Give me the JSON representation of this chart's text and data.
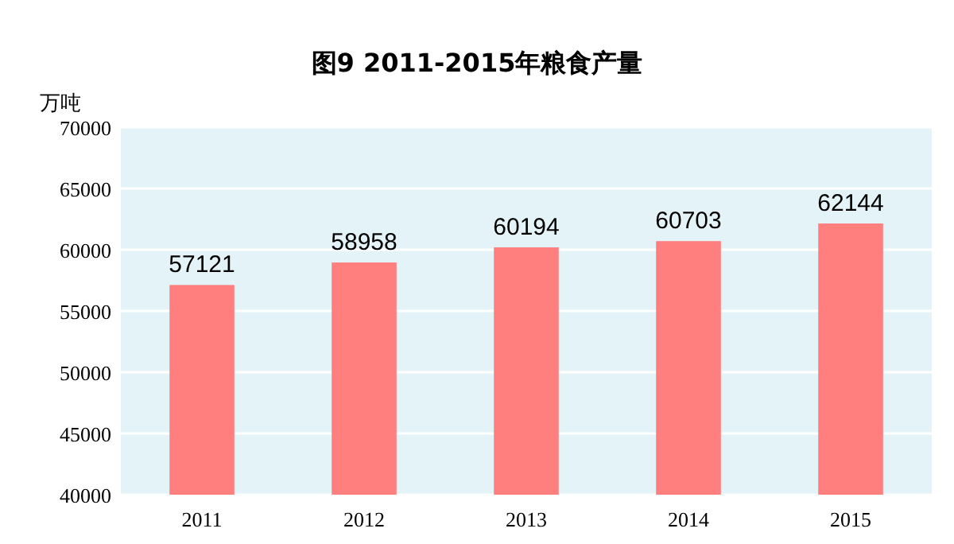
{
  "chart_data": {
    "type": "bar",
    "title": "图9  2011-2015年粮食产量",
    "ylabel": "万吨",
    "categories": [
      "2011",
      "2012",
      "2013",
      "2014",
      "2015"
    ],
    "values": [
      57121,
      58958,
      60194,
      60703,
      62144
    ],
    "color": "#ff7f7f",
    "ylim": [
      40000,
      70000
    ],
    "yticks": [
      40000,
      45000,
      50000,
      55000,
      60000,
      65000,
      70000
    ],
    "grid": "y",
    "data_labels": true
  }
}
